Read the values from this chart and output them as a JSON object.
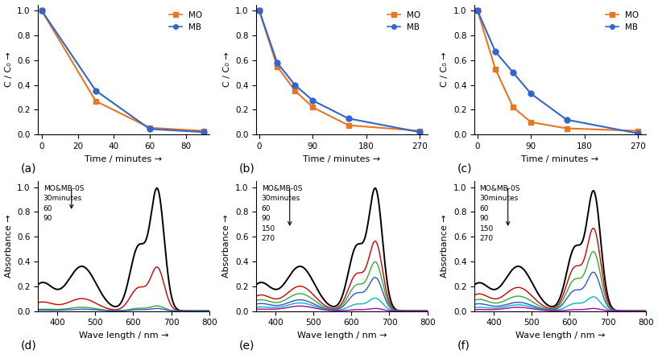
{
  "panel_a": {
    "label": "(a)",
    "time": [
      0,
      30,
      60,
      90
    ],
    "MO": [
      1.0,
      0.27,
      0.055,
      0.03
    ],
    "MB": [
      1.0,
      0.355,
      0.045,
      0.02
    ],
    "xlabel": "Time / minutes →",
    "ylabel": "C / C₀ →",
    "xticks": [
      0,
      20,
      40,
      60,
      80
    ],
    "xlim": [
      -2,
      93
    ],
    "ylim": [
      0,
      1.05
    ]
  },
  "panel_b": {
    "label": "(b)",
    "time": [
      0,
      30,
      60,
      90,
      150,
      270
    ],
    "MO": [
      1.0,
      0.55,
      0.355,
      0.22,
      0.075,
      0.03
    ],
    "MB": [
      1.0,
      0.58,
      0.4,
      0.275,
      0.13,
      0.02
    ],
    "xlabel": "Time / minutes →",
    "ylabel": "C / C₀ →",
    "xticks": [
      0,
      90,
      180,
      270
    ],
    "xlim": [
      -5,
      283
    ],
    "ylim": [
      0,
      1.05
    ]
  },
  "panel_c": {
    "label": "(c)",
    "time": [
      0,
      30,
      60,
      90,
      150,
      270
    ],
    "MO": [
      1.0,
      0.53,
      0.22,
      0.1,
      0.05,
      0.03
    ],
    "MB": [
      1.0,
      0.67,
      0.5,
      0.33,
      0.12,
      0.01
    ],
    "xlabel": "Time / minutes →",
    "ylabel": "C / C₀ →",
    "xticks": [
      0,
      90,
      180,
      270
    ],
    "xlim": [
      -5,
      283
    ],
    "ylim": [
      0,
      1.05
    ]
  },
  "uvvis_d": {
    "label": "(d)",
    "legend_items": [
      "MO&MB-0S",
      "30minutes",
      "60",
      "90"
    ],
    "scales_MO": [
      0.36,
      0.1,
      0.03,
      0.015
    ],
    "scales_MB": [
      0.95,
      0.34,
      0.04,
      0.02
    ],
    "colors": [
      "black",
      "#CC0000",
      "#33AA33",
      "#3355CC"
    ],
    "xlabel": "Wave length / nm →",
    "ylabel": "Absorbance →"
  },
  "uvvis_e": {
    "label": "(e)",
    "legend_items": [
      "MO&MB-0S",
      "30minutes",
      "60",
      "90",
      "150",
      "270"
    ],
    "scales_MO": [
      0.36,
      0.2,
      0.14,
      0.09,
      0.065,
      0.04
    ],
    "scales_MB": [
      0.95,
      0.54,
      0.38,
      0.26,
      0.1,
      0.02
    ],
    "colors": [
      "black",
      "#CC0000",
      "#33AA33",
      "#3355CC",
      "#00BBBB",
      "#AA00AA"
    ],
    "xlabel": "Wave length / nm →",
    "ylabel": "Absorbance →"
  },
  "uvvis_f": {
    "label": "(f)",
    "legend_items": [
      "MO&MB-0S",
      "30minutes",
      "60",
      "90",
      "150",
      "270"
    ],
    "scales_MO": [
      0.36,
      0.19,
      0.12,
      0.07,
      0.05,
      0.03
    ],
    "scales_MB": [
      0.93,
      0.64,
      0.46,
      0.3,
      0.11,
      0.02
    ],
    "colors": [
      "black",
      "#CC0000",
      "#33AA33",
      "#3355CC",
      "#00BBBB",
      "#AA00AA"
    ],
    "xlabel": "Wave length / nm →",
    "ylabel": "Absorbance →"
  },
  "MO_color": "#E87722",
  "MB_color": "#3366CC",
  "line_width": 1.5,
  "marker_size": 5,
  "MO_marker": "s",
  "MB_marker": "o",
  "label_fontsize": 8,
  "tick_fontsize": 7.5,
  "legend_fontsize": 7.5
}
